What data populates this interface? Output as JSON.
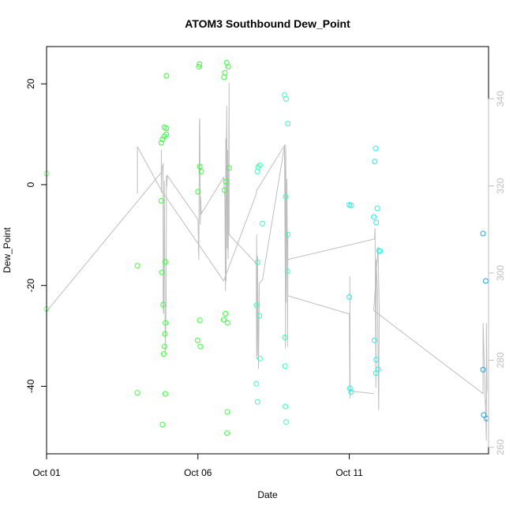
{
  "chart_data": {
    "type": "scatter",
    "title": "ATOM3 Southbound Dew_Point",
    "xlabel": "Date",
    "ylabel": "Dew_Point",
    "x_range": [
      0.0,
      14.6
    ],
    "x_ticks": [
      {
        "value": 0,
        "label": "Oct 01"
      },
      {
        "value": 5,
        "label": "Oct 06"
      },
      {
        "value": 10,
        "label": "Oct 11"
      }
    ],
    "ylim": [
      -53.4,
      27.4
    ],
    "y_ticks": [
      -40,
      -20,
      0,
      20
    ],
    "y_right_range": [
      258.5,
      352.0
    ],
    "y_right_ticks": [
      260,
      280,
      300,
      320,
      340
    ],
    "grid": false,
    "legend": "none",
    "colors": {
      "line": "#bebebe",
      "right_axis": "#bebebe",
      "frame": "#000000"
    },
    "series": [
      {
        "color": "#7fff7f",
        "points": [
          [
            0.0,
            2.2
          ],
          [
            0.0,
            -24.7
          ]
        ]
      },
      {
        "color": "#33ff33",
        "points": [
          [
            3.0,
            -16.1
          ],
          [
            3.0,
            -41.3
          ],
          [
            3.79,
            -3.2
          ],
          [
            3.79,
            8.3
          ],
          [
            3.81,
            -17.4
          ],
          [
            3.83,
            -47.6
          ],
          [
            3.83,
            9.0
          ],
          [
            3.85,
            -23.8
          ],
          [
            3.87,
            -33.6
          ],
          [
            3.89,
            9.6
          ],
          [
            3.89,
            11.4
          ],
          [
            3.9,
            -32.1
          ],
          [
            3.91,
            -29.6
          ],
          [
            3.92,
            -15.3
          ],
          [
            3.92,
            -41.5
          ],
          [
            3.93,
            -27.4
          ],
          [
            3.95,
            10.0
          ],
          [
            3.95,
            11.2
          ],
          [
            3.96,
            21.6
          ],
          [
            4.99,
            -30.9
          ],
          [
            5.0,
            -1.4
          ],
          [
            5.03,
            23.4
          ],
          [
            5.05,
            23.9
          ],
          [
            5.06,
            -26.9
          ],
          [
            5.06,
            3.6
          ],
          [
            5.08,
            -32.1
          ],
          [
            5.11,
            2.6
          ],
          [
            5.85,
            -26.8
          ],
          [
            5.86,
            21.3
          ],
          [
            5.88,
            -1.1
          ],
          [
            5.89,
            22.2
          ],
          [
            5.91,
            -25.6
          ],
          [
            5.93,
            0.6
          ],
          [
            5.95,
            24.2
          ],
          [
            5.96,
            -49.3
          ],
          [
            5.97,
            -45.1
          ],
          [
            5.98,
            -27.4
          ],
          [
            6.0,
            23.4
          ],
          [
            6.03,
            3.3
          ]
        ]
      },
      {
        "color": "#33ffb3",
        "points": [
          [
            6.93,
            -39.5
          ],
          [
            6.94,
            -23.9
          ],
          [
            6.96,
            2.6
          ],
          [
            6.97,
            -43.1
          ],
          [
            6.97,
            -15.4
          ],
          [
            6.99,
            3.5
          ],
          [
            7.03,
            -26.0
          ],
          [
            7.05,
            -34.5
          ],
          [
            7.05,
            3.9
          ],
          [
            7.13,
            -7.7
          ],
          [
            7.86,
            17.8
          ],
          [
            7.87,
            -30.3
          ],
          [
            7.88,
            -36.0
          ],
          [
            7.89,
            -44.0
          ],
          [
            7.9,
            -2.4
          ],
          [
            7.91,
            -47.1
          ],
          [
            7.91,
            17.0
          ],
          [
            7.96,
            -17.2
          ],
          [
            7.97,
            12.1
          ],
          [
            7.97,
            -9.9
          ]
        ]
      },
      {
        "color": "#1ff2e6",
        "points": [
          [
            10.0,
            -22.3
          ],
          [
            10.0,
            -4.0
          ],
          [
            10.02,
            -40.4
          ],
          [
            10.06,
            -4.1
          ],
          [
            10.06,
            -41.1
          ],
          [
            10.81,
            -6.4
          ],
          [
            10.83,
            -30.9
          ],
          [
            10.84,
            4.6
          ],
          [
            10.87,
            7.2
          ],
          [
            10.88,
            -37.4
          ],
          [
            10.89,
            -7.5
          ],
          [
            10.89,
            -34.7
          ],
          [
            10.93,
            -4.7
          ],
          [
            10.95,
            -36.6
          ],
          [
            10.98,
            -13.1
          ],
          [
            11.02,
            -13.2
          ]
        ]
      },
      {
        "color": "#0fa8e8",
        "points": [
          [
            14.42,
            -9.7
          ],
          [
            14.42,
            -36.7
          ],
          [
            14.44,
            -45.7
          ],
          [
            14.51,
            -19.1
          ],
          [
            14.53,
            -46.4
          ]
        ]
      }
    ],
    "line_segments": [
      [
        [
          0.0,
          291.2
        ],
        [
          0.0,
          277.2
        ],
        [
          0.0,
          291.2
        ],
        [
          3.79,
          323.1
        ],
        [
          3.79,
          328.3
        ],
        [
          3.79,
          318.4
        ],
        [
          3.81,
          323.7
        ],
        [
          3.85,
          325.2
        ],
        [
          3.85,
          291.8
        ],
        [
          3.87,
          290.6
        ],
        [
          3.89,
          321.1
        ],
        [
          3.92,
          281.5
        ],
        [
          3.95,
          294.5
        ],
        [
          3.96,
          322.4
        ],
        [
          3.97,
          319.8
        ],
        [
          3.99,
          322.4
        ],
        [
          5.0,
          312.3
        ],
        [
          5.03,
          303.0
        ],
        [
          5.05,
          334.7
        ],
        [
          5.06,
          335.5
        ],
        [
          5.08,
          311.1
        ],
        [
          5.09,
          317.5
        ],
        [
          5.11,
          313.6
        ],
        [
          5.85,
          322.0
        ],
        [
          5.89,
          317.3
        ],
        [
          5.91,
          295.9
        ],
        [
          5.92,
          330.9
        ],
        [
          5.93,
          298.1
        ],
        [
          5.95,
          338.4
        ],
        [
          5.96,
          328.3
        ],
        [
          5.97,
          305.6
        ],
        [
          5.98,
          328.3
        ],
        [
          6.0,
          303.2
        ],
        [
          6.03,
          343.6
        ],
        [
          6.03,
          308.8
        ],
        [
          6.93,
          302.2
        ],
        [
          6.93,
          295.0
        ],
        [
          6.94,
          280.2
        ],
        [
          6.94,
          308.8
        ],
        [
          6.96,
          281.0
        ],
        [
          6.97,
          304.0
        ],
        [
          7.0,
          278.0
        ],
        [
          7.03,
          297.7
        ],
        [
          7.13,
          298.4
        ],
        [
          7.86,
          329.2
        ],
        [
          7.87,
          314.1
        ],
        [
          7.89,
          294.9
        ],
        [
          7.89,
          282.7
        ],
        [
          7.9,
          329.5
        ],
        [
          7.91,
          317.7
        ],
        [
          7.91,
          293.2
        ],
        [
          7.94,
          321.6
        ],
        [
          7.95,
          312.1
        ],
        [
          7.96,
          283.1
        ],
        [
          7.97,
          309.3
        ],
        [
          7.97,
          294.8
        ],
        [
          10.0,
          290.6
        ],
        [
          10.02,
          271.2
        ],
        [
          10.02,
          299.2
        ],
        [
          10.03,
          272.9
        ],
        [
          10.81,
          272.3
        ]
      ],
      [
        [
          3.0,
          318.2
        ],
        [
          3.0,
          329.0
        ],
        [
          3.79,
          319.0
        ],
        [
          5.85,
          298.2
        ],
        [
          6.93,
          318.2
        ],
        [
          6.93,
          318.8
        ],
        [
          7.86,
          329.3
        ],
        [
          7.91,
          303.0
        ],
        [
          10.83,
          307.8
        ],
        [
          10.85,
          310.3
        ],
        [
          10.88,
          273.7
        ],
        [
          10.89,
          303.1
        ],
        [
          10.93,
          296.2
        ],
        [
          10.97,
          268.5
        ],
        [
          10.99,
          291.4
        ],
        [
          10.95,
          306.0
        ],
        [
          10.81,
          291.4
        ],
        [
          14.42,
          272.3
        ],
        [
          14.42,
          288.5
        ],
        [
          14.53,
          261.5
        ],
        [
          14.53,
          288.5
        ],
        [
          14.55,
          273.7
        ],
        [
          14.51,
          269.8
        ]
      ]
    ]
  }
}
